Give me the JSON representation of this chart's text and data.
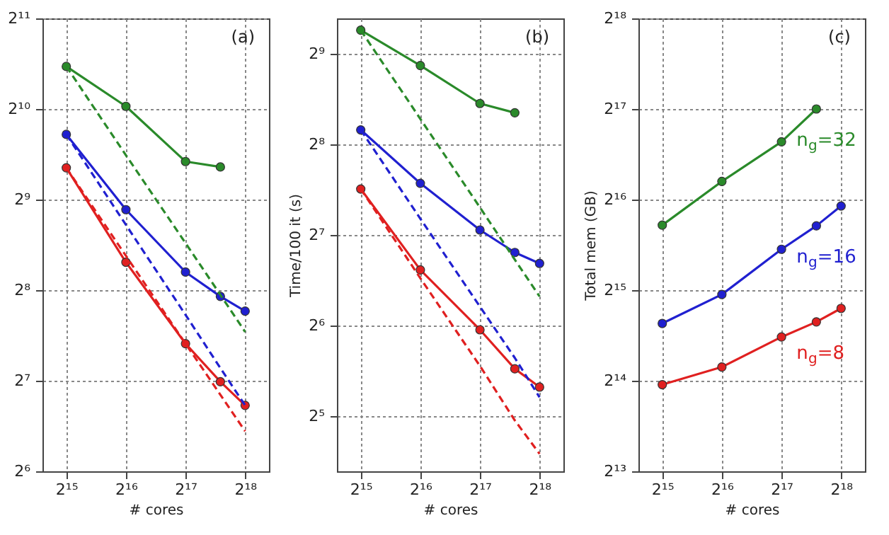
{
  "chart_data": [
    {
      "type": "line",
      "xlabel": "# cores",
      "log": "xy",
      "grid": true,
      "marker": "circle",
      "line_style": "solid",
      "annotations": [
        "(a)"
      ],
      "xlim": [
        24834,
        345901
      ],
      "xticks": [
        {
          "value": 32768,
          "label": "2¹⁵"
        },
        {
          "value": 65536,
          "label": "2¹⁶"
        },
        {
          "value": 131072,
          "label": "2¹⁷"
        },
        {
          "value": 262144,
          "label": "2¹⁸"
        }
      ],
      "ylim": [
        64,
        2048
      ],
      "yticks": [
        {
          "value": 64,
          "label": "2⁶"
        },
        {
          "value": 128,
          "label": "2⁷"
        },
        {
          "value": 256,
          "label": "2⁸"
        },
        {
          "value": 512,
          "label": "2⁹"
        },
        {
          "value": 1024,
          "label": "2¹⁰"
        },
        {
          "value": 2048,
          "label": "2¹¹"
        }
      ],
      "x": [
        32768,
        65536,
        131072,
        196608,
        262144
      ],
      "series": [
        {
          "color": "#2a8a2a",
          "values": [
            1418,
            1045,
            685,
            657,
            null
          ]
        },
        {
          "color": "#2020d0",
          "values": [
            843,
            474,
            294,
            244,
            218
          ]
        },
        {
          "color": "#e02020",
          "values": [
            653,
            317,
            170,
            127,
            106
          ]
        },
        {
          "type": "line",
          "color": "#2a8a2a",
          "line_style": "dashed",
          "marker": "none",
          "values": [
            1418,
            719,
            367,
            247,
            186
          ]
        },
        {
          "type": "line",
          "color": "#2020d0",
          "line_style": "dashed",
          "marker": "none",
          "values": [
            843,
            422,
            212,
            141,
            106
          ]
        },
        {
          "type": "line",
          "color": "#e02020",
          "line_style": "dashed",
          "marker": "none",
          "values": [
            653,
            333,
            170,
            115,
            87
          ]
        }
      ]
    },
    {
      "type": "line",
      "xlabel": "# cores",
      "ylabel": "Time/100 it (s)",
      "log": "xy",
      "grid": true,
      "marker": "circle",
      "line_style": "solid",
      "annotations": [
        "(b)"
      ],
      "xlim": [
        24834,
        345901
      ],
      "xticks": [
        {
          "value": 32768,
          "label": "2¹⁵"
        },
        {
          "value": 65536,
          "label": "2¹⁶"
        },
        {
          "value": 131072,
          "label": "2¹⁷"
        },
        {
          "value": 262144,
          "label": "2¹⁸"
        }
      ],
      "ylim": [
        21,
        671
      ],
      "yticks": [
        {
          "value": 32,
          "label": "2⁵"
        },
        {
          "value": 64,
          "label": "2⁶"
        },
        {
          "value": 128,
          "label": "2⁷"
        },
        {
          "value": 256,
          "label": "2⁸"
        },
        {
          "value": 512,
          "label": "2⁹"
        }
      ],
      "x": [
        32768,
        65536,
        131072,
        196608,
        262144
      ],
      "series": [
        {
          "color": "#2a8a2a",
          "values": [
            613,
            468,
            350,
            326,
            null
          ]
        },
        {
          "color": "#2020d0",
          "values": [
            286,
            190,
            133,
            112,
            103
          ]
        },
        {
          "color": "#e02020",
          "values": [
            182,
            98,
            62,
            46,
            40
          ]
        },
        {
          "type": "line",
          "color": "#2a8a2a",
          "line_style": "dashed",
          "marker": "none",
          "values": [
            613,
            311,
            158,
            106,
            80
          ]
        },
        {
          "type": "line",
          "color": "#2020d0",
          "line_style": "dashed",
          "marker": "none",
          "values": [
            286,
            145,
            74,
            50,
            37
          ]
        },
        {
          "type": "line",
          "color": "#e02020",
          "line_style": "dashed",
          "marker": "none",
          "values": [
            182,
            92,
            47,
            31,
            24
          ]
        }
      ]
    },
    {
      "type": "line",
      "xlabel": "# cores",
      "ylabel": "Total mem (GB)",
      "log": "xy",
      "grid": true,
      "marker": "circle",
      "line_style": "solid",
      "annotations": [
        "(c)"
      ],
      "xlim": [
        24834,
        345901
      ],
      "xticks": [
        {
          "value": 32768,
          "label": "2¹⁵"
        },
        {
          "value": 65536,
          "label": "2¹⁶"
        },
        {
          "value": 131072,
          "label": "2¹⁷"
        },
        {
          "value": 262144,
          "label": "2¹⁸"
        }
      ],
      "ylim": [
        8192,
        262144
      ],
      "yticks": [
        {
          "value": 8192,
          "label": "2¹³"
        },
        {
          "value": 16384,
          "label": "2¹⁴"
        },
        {
          "value": 32768,
          "label": "2¹⁵"
        },
        {
          "value": 65536,
          "label": "2¹⁶"
        },
        {
          "value": 131072,
          "label": "2¹⁷"
        },
        {
          "value": 262144,
          "label": "2¹⁸"
        }
      ],
      "x": [
        32768,
        65536,
        131072,
        196608,
        262144
      ],
      "series": [
        {
          "name": "n$_{g}$=32",
          "color": "#2a8a2a",
          "values": [
            53900,
            75300,
            102000,
            131072,
            null
          ]
        },
        {
          "name": "n$_{g}$=16",
          "color": "#2020d0",
          "values": [
            25400,
            31700,
            44800,
            53600,
            62400
          ]
        },
        {
          "name": "n$_{g}$=8",
          "color": "#e02020",
          "values": [
            15900,
            18200,
            22900,
            25700,
            28500
          ]
        }
      ]
    }
  ]
}
